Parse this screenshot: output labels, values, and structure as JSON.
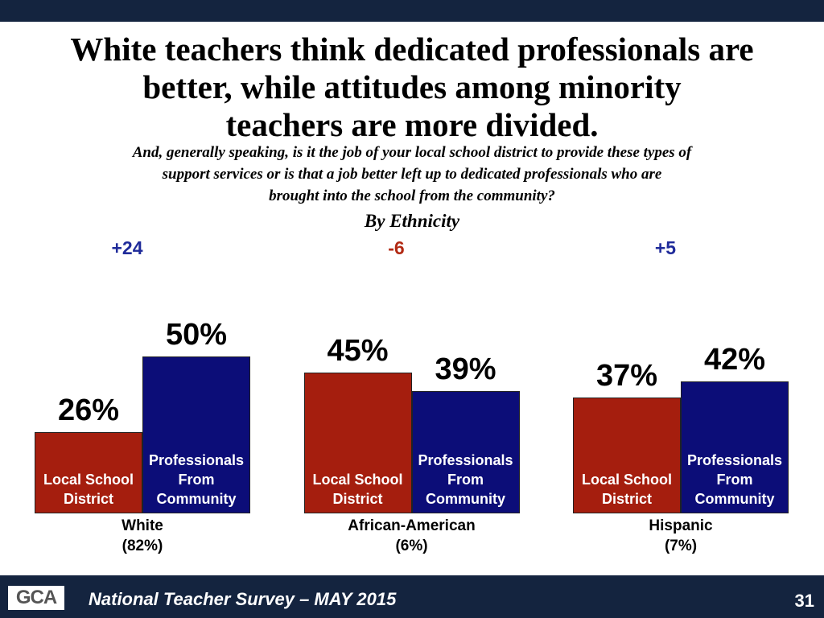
{
  "chart_data": {
    "type": "bar",
    "title": "White teachers think dedicated professionals are\nbetter, while attitudes among minority\nteachers are more divided.",
    "subtitle": "And, generally speaking, is it the job of your local school district to provide these types of\nsupport services or is that a job better left up to dedicated professionals who are\nbrought into the school from the community?",
    "group_title": "By Ethnicity",
    "categories": [
      "White",
      "African-American",
      "Hispanic"
    ],
    "category_shares": [
      "(82%)",
      "(6%)",
      "(7%)"
    ],
    "differences": [
      {
        "label": "+24",
        "color": "#1f2b9a"
      },
      {
        "label": "-6",
        "color": "#b22a14"
      },
      {
        "label": "+5",
        "color": "#1f2b9a"
      }
    ],
    "ylim": [
      0,
      50
    ],
    "series": [
      {
        "name": "Local School District",
        "color": "#a51e0e",
        "values": [
          26,
          45,
          37
        ],
        "value_labels": [
          "26%",
          "45%",
          "37%"
        ]
      },
      {
        "name": "Professionals From Community",
        "color": "#0c0d78",
        "values": [
          50,
          39,
          42
        ],
        "value_labels": [
          "50%",
          "39%",
          "42%"
        ]
      }
    ]
  },
  "footer": {
    "logo": "GCA",
    "text": "National Teacher Survey – MAY 2015",
    "page_number": "31"
  }
}
